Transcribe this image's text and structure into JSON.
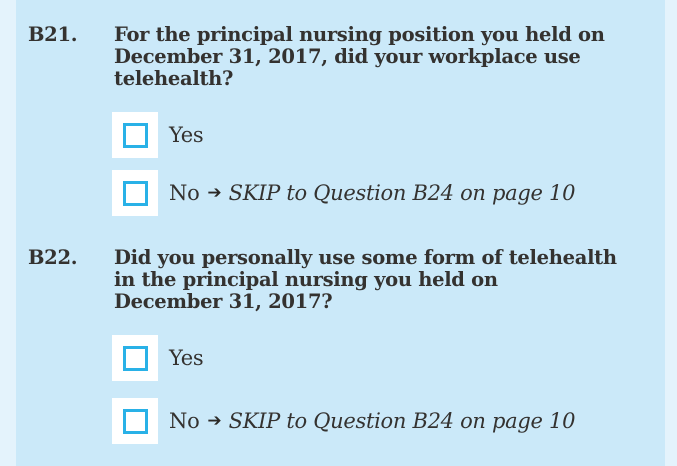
{
  "theme": {
    "page_background": "#e4f3fc",
    "panel_background": "#cbe9f9",
    "checkbox_border_color": "#29b1e7",
    "text_color": "#343230"
  },
  "questions": [
    {
      "number": "B21.",
      "lines": [
        "For the principal nursing position you held on",
        "December 31, 2017, did your workplace use",
        "telehealth?"
      ],
      "options": [
        {
          "label": "Yes"
        },
        {
          "label": "No",
          "arrow": "➔",
          "skip": "SKIP to Question B24 on page 10"
        }
      ]
    },
    {
      "number": "B22.",
      "lines": [
        "Did you personally use some form of telehealth",
        "in the principal nursing you held on",
        "December 31, 2017?"
      ],
      "options": [
        {
          "label": "Yes"
        },
        {
          "label": "No",
          "arrow": "➔",
          "skip": "SKIP to Question B24 on page 10"
        }
      ]
    }
  ]
}
